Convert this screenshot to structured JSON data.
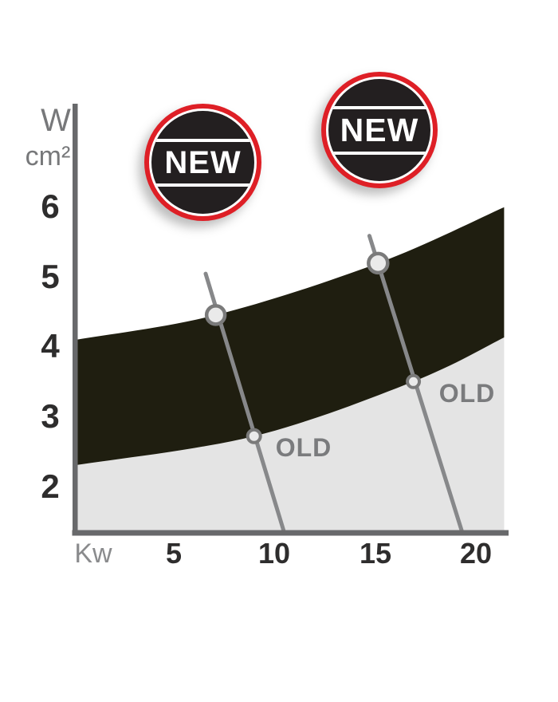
{
  "background": "#ffffff",
  "badges": [
    {
      "label": "NEW"
    },
    {
      "label": "NEW"
    }
  ],
  "axes_labels": {
    "y_unit_top": "W",
    "y_unit_bottom": "cm²",
    "x_unit": "Kw"
  },
  "colors": {
    "band_new": "#1f1e10",
    "band_old": "#e4e4e4",
    "axis": "#68696b",
    "pointer_line": "#87888a",
    "marker_fill": "#eaeaea",
    "marker_stroke": "#7a7a7a",
    "badge_red": "#de1f26",
    "badge_black": "#231f20",
    "badge_text": "#ffffff",
    "tick_text": "#2e2d2d",
    "unit_text": "#77787a",
    "old_text": "#7a7b7d"
  },
  "chart_data": {
    "type": "area",
    "title": "",
    "xlabel": "Kw",
    "ylabel": "W/cm²",
    "x_ticks": [
      5,
      10,
      15,
      20
    ],
    "y_ticks": [
      6,
      5,
      4,
      3,
      2
    ],
    "xlim": [
      0.24,
      21.4
    ],
    "ylim": [
      1.3,
      6.2
    ],
    "grid": false,
    "legend_position": "none",
    "bands": [
      {
        "name": "NEW",
        "fill": "#1f1e10",
        "upper": [
          [
            0.24,
            4.1
          ],
          [
            7.1,
            4.45
          ],
          [
            15.15,
            5.19
          ],
          [
            21.4,
            5.99
          ]
        ],
        "lower": [
          [
            0.24,
            2.31
          ],
          [
            9.0,
            2.72
          ],
          [
            16.9,
            3.5
          ],
          [
            21.4,
            4.13
          ]
        ]
      },
      {
        "name": "OLD",
        "fill": "#e4e4e4",
        "upper": [
          [
            0.24,
            2.31
          ],
          [
            9.0,
            2.72
          ],
          [
            16.9,
            3.5
          ],
          [
            21.4,
            4.13
          ]
        ],
        "baseline_v": 1.36
      }
    ],
    "pointer_lines": [
      {
        "x1": 6.6,
        "y1": 5.04,
        "x2": 10.5,
        "y2": 1.34
      },
      {
        "x1": 14.72,
        "y1": 5.58,
        "x2": 19.33,
        "y2": 1.34
      }
    ],
    "markers": [
      {
        "band": "NEW",
        "x": 7.1,
        "v": 4.45,
        "r": 11.5,
        "stroke_w": 4.5
      },
      {
        "band": "OLD",
        "x": 9.0,
        "v": 2.72,
        "r": 8,
        "stroke_w": 4
      },
      {
        "band": "NEW",
        "x": 15.15,
        "v": 5.19,
        "r": 12,
        "stroke_w": 4.5
      },
      {
        "band": "OLD",
        "x": 16.9,
        "v": 3.5,
        "r": 7.5,
        "stroke_w": 4
      }
    ],
    "annotations": [
      {
        "text": "OLD",
        "x": 11.45,
        "v": 2.56
      },
      {
        "text": "OLD",
        "x": 19.55,
        "v": 3.33
      }
    ]
  }
}
